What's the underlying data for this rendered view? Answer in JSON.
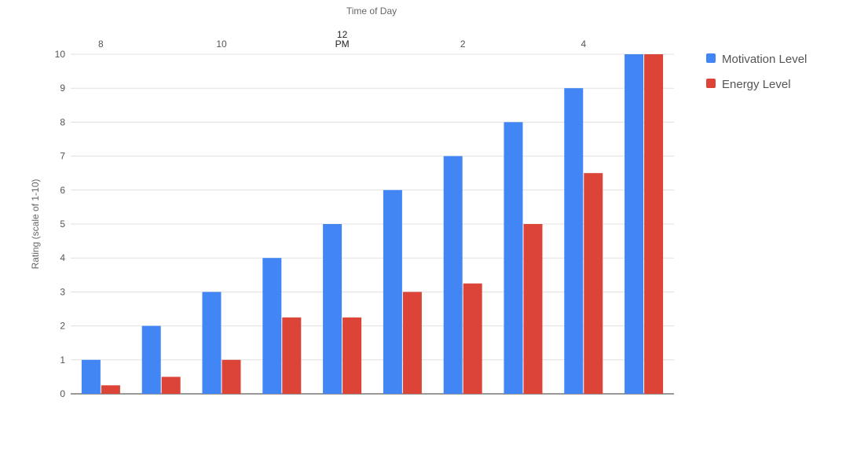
{
  "chart_data": {
    "type": "bar",
    "xlabel": "Time of Day",
    "ylabel": "Rating (scale of 1-10)",
    "ylim": [
      0,
      10
    ],
    "yticks": [
      0,
      1,
      2,
      3,
      4,
      5,
      6,
      7,
      8,
      9,
      10
    ],
    "x_tick_labels": [
      {
        "index": 0,
        "lines": [
          "8"
        ],
        "emphasis": false
      },
      {
        "index": 2,
        "lines": [
          "10"
        ],
        "emphasis": false
      },
      {
        "index": 4,
        "lines": [
          "12",
          "PM"
        ],
        "emphasis": true
      },
      {
        "index": 6,
        "lines": [
          "2"
        ],
        "emphasis": false
      },
      {
        "index": 8,
        "lines": [
          "4"
        ],
        "emphasis": false
      }
    ],
    "x_axis_position": "top",
    "grid": true,
    "legend_position": "right",
    "series": [
      {
        "name": "Motivation Level",
        "color": "#4285F4",
        "values": [
          1,
          2,
          3,
          4,
          5,
          6,
          7,
          8,
          9,
          10
        ]
      },
      {
        "name": "Energy Level",
        "color": "#DB4437",
        "values": [
          0.25,
          0.5,
          1,
          2.25,
          2.25,
          3,
          3.25,
          5,
          6.5,
          10
        ]
      }
    ]
  }
}
